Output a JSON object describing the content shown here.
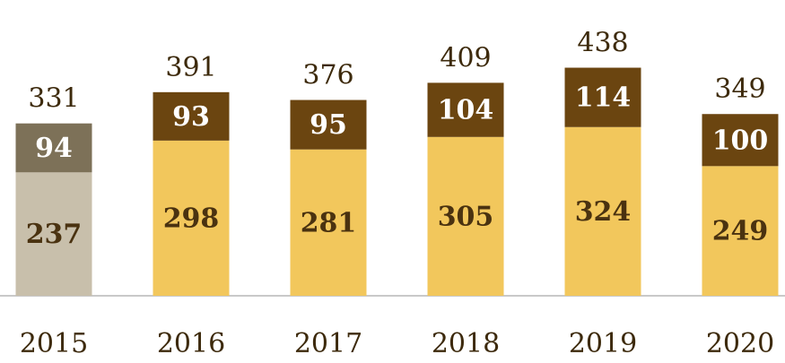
{
  "chart_data": {
    "type": "stacked_bar",
    "categories": [
      "2015",
      "2016",
      "2017",
      "2018",
      "2019",
      "2020"
    ],
    "series": [
      {
        "colors": [
          "#c8bfab",
          "#f2c75c",
          "#f2c75c",
          "#f2c75c",
          "#f2c75c",
          "#f2c75c"
        ],
        "values": [
          237,
          298,
          281,
          305,
          324,
          249
        ]
      },
      {
        "colors": [
          "#7d7158",
          "#6b4510",
          "#6b4510",
          "#6b4510",
          "#6b4510",
          "#6b4510"
        ],
        "values": [
          94,
          93,
          95,
          104,
          114,
          100
        ]
      }
    ],
    "totals": [
      331,
      391,
      376,
      409,
      438,
      349
    ],
    "ylim": [
      0,
      568
    ]
  }
}
